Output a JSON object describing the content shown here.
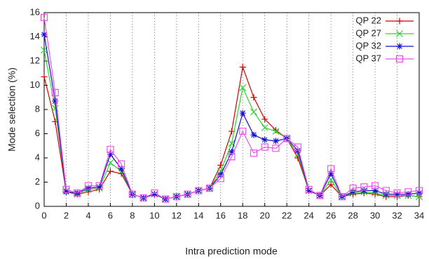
{
  "chart_data": {
    "type": "line",
    "x_label": "Intra prediction mode",
    "y_label": "Mode selection (%)",
    "x": [
      0,
      1,
      2,
      3,
      4,
      5,
      6,
      7,
      8,
      9,
      10,
      11,
      12,
      13,
      14,
      15,
      16,
      17,
      18,
      19,
      20,
      21,
      22,
      23,
      24,
      25,
      26,
      27,
      28,
      29,
      30,
      31,
      32,
      33,
      34
    ],
    "xlim": [
      0,
      34
    ],
    "xticks": [
      0,
      2,
      4,
      6,
      8,
      10,
      12,
      14,
      16,
      18,
      20,
      22,
      24,
      26,
      28,
      30,
      32,
      34
    ],
    "ylim": [
      0,
      16
    ],
    "yticks": [
      0,
      2,
      4,
      6,
      8,
      10,
      12,
      14,
      16
    ],
    "grid": "x",
    "legend": "top-right",
    "series": [
      {
        "name": "QP 22",
        "color": "#d40000",
        "marker": "plus",
        "values": [
          10.7,
          7.0,
          1.2,
          1.0,
          1.2,
          1.4,
          2.9,
          2.7,
          1.0,
          0.7,
          1.0,
          0.6,
          0.8,
          1.0,
          1.3,
          1.5,
          3.4,
          6.2,
          11.5,
          9.0,
          7.2,
          6.3,
          5.6,
          4.0,
          1.3,
          0.9,
          1.8,
          0.8,
          1.0,
          1.1,
          1.0,
          0.8,
          0.8,
          0.9,
          0.8
        ]
      },
      {
        "name": "QP 27",
        "color": "#2ed42e",
        "marker": "cross",
        "values": [
          12.9,
          8.1,
          1.3,
          1.0,
          1.4,
          1.5,
          3.6,
          2.9,
          1.0,
          0.7,
          1.0,
          0.6,
          0.8,
          1.0,
          1.3,
          1.5,
          2.9,
          5.2,
          9.8,
          7.8,
          6.5,
          6.2,
          5.6,
          4.3,
          1.3,
          0.9,
          2.2,
          0.8,
          1.1,
          1.2,
          1.1,
          0.9,
          0.9,
          0.9,
          0.8
        ]
      },
      {
        "name": "QP 32",
        "color": "#1010d0",
        "marker": "star",
        "values": [
          14.2,
          8.7,
          1.2,
          1.1,
          1.5,
          1.6,
          4.3,
          3.1,
          1.0,
          0.7,
          1.0,
          0.6,
          0.8,
          1.0,
          1.3,
          1.5,
          2.6,
          4.5,
          7.7,
          5.9,
          5.5,
          5.4,
          5.6,
          4.6,
          1.3,
          0.9,
          2.7,
          0.8,
          1.2,
          1.3,
          1.3,
          1.0,
          1.0,
          1.0,
          1.1
        ]
      },
      {
        "name": "QP 37",
        "color": "#f050f0",
        "marker": "square",
        "values": [
          15.6,
          9.4,
          1.4,
          1.1,
          1.7,
          1.7,
          4.7,
          3.5,
          1.0,
          0.7,
          1.1,
          0.6,
          0.8,
          1.0,
          1.3,
          1.5,
          2.3,
          4.1,
          6.2,
          4.4,
          4.9,
          4.8,
          5.6,
          4.9,
          1.4,
          0.9,
          3.1,
          0.8,
          1.5,
          1.6,
          1.7,
          1.3,
          1.1,
          1.2,
          1.3
        ]
      }
    ]
  }
}
